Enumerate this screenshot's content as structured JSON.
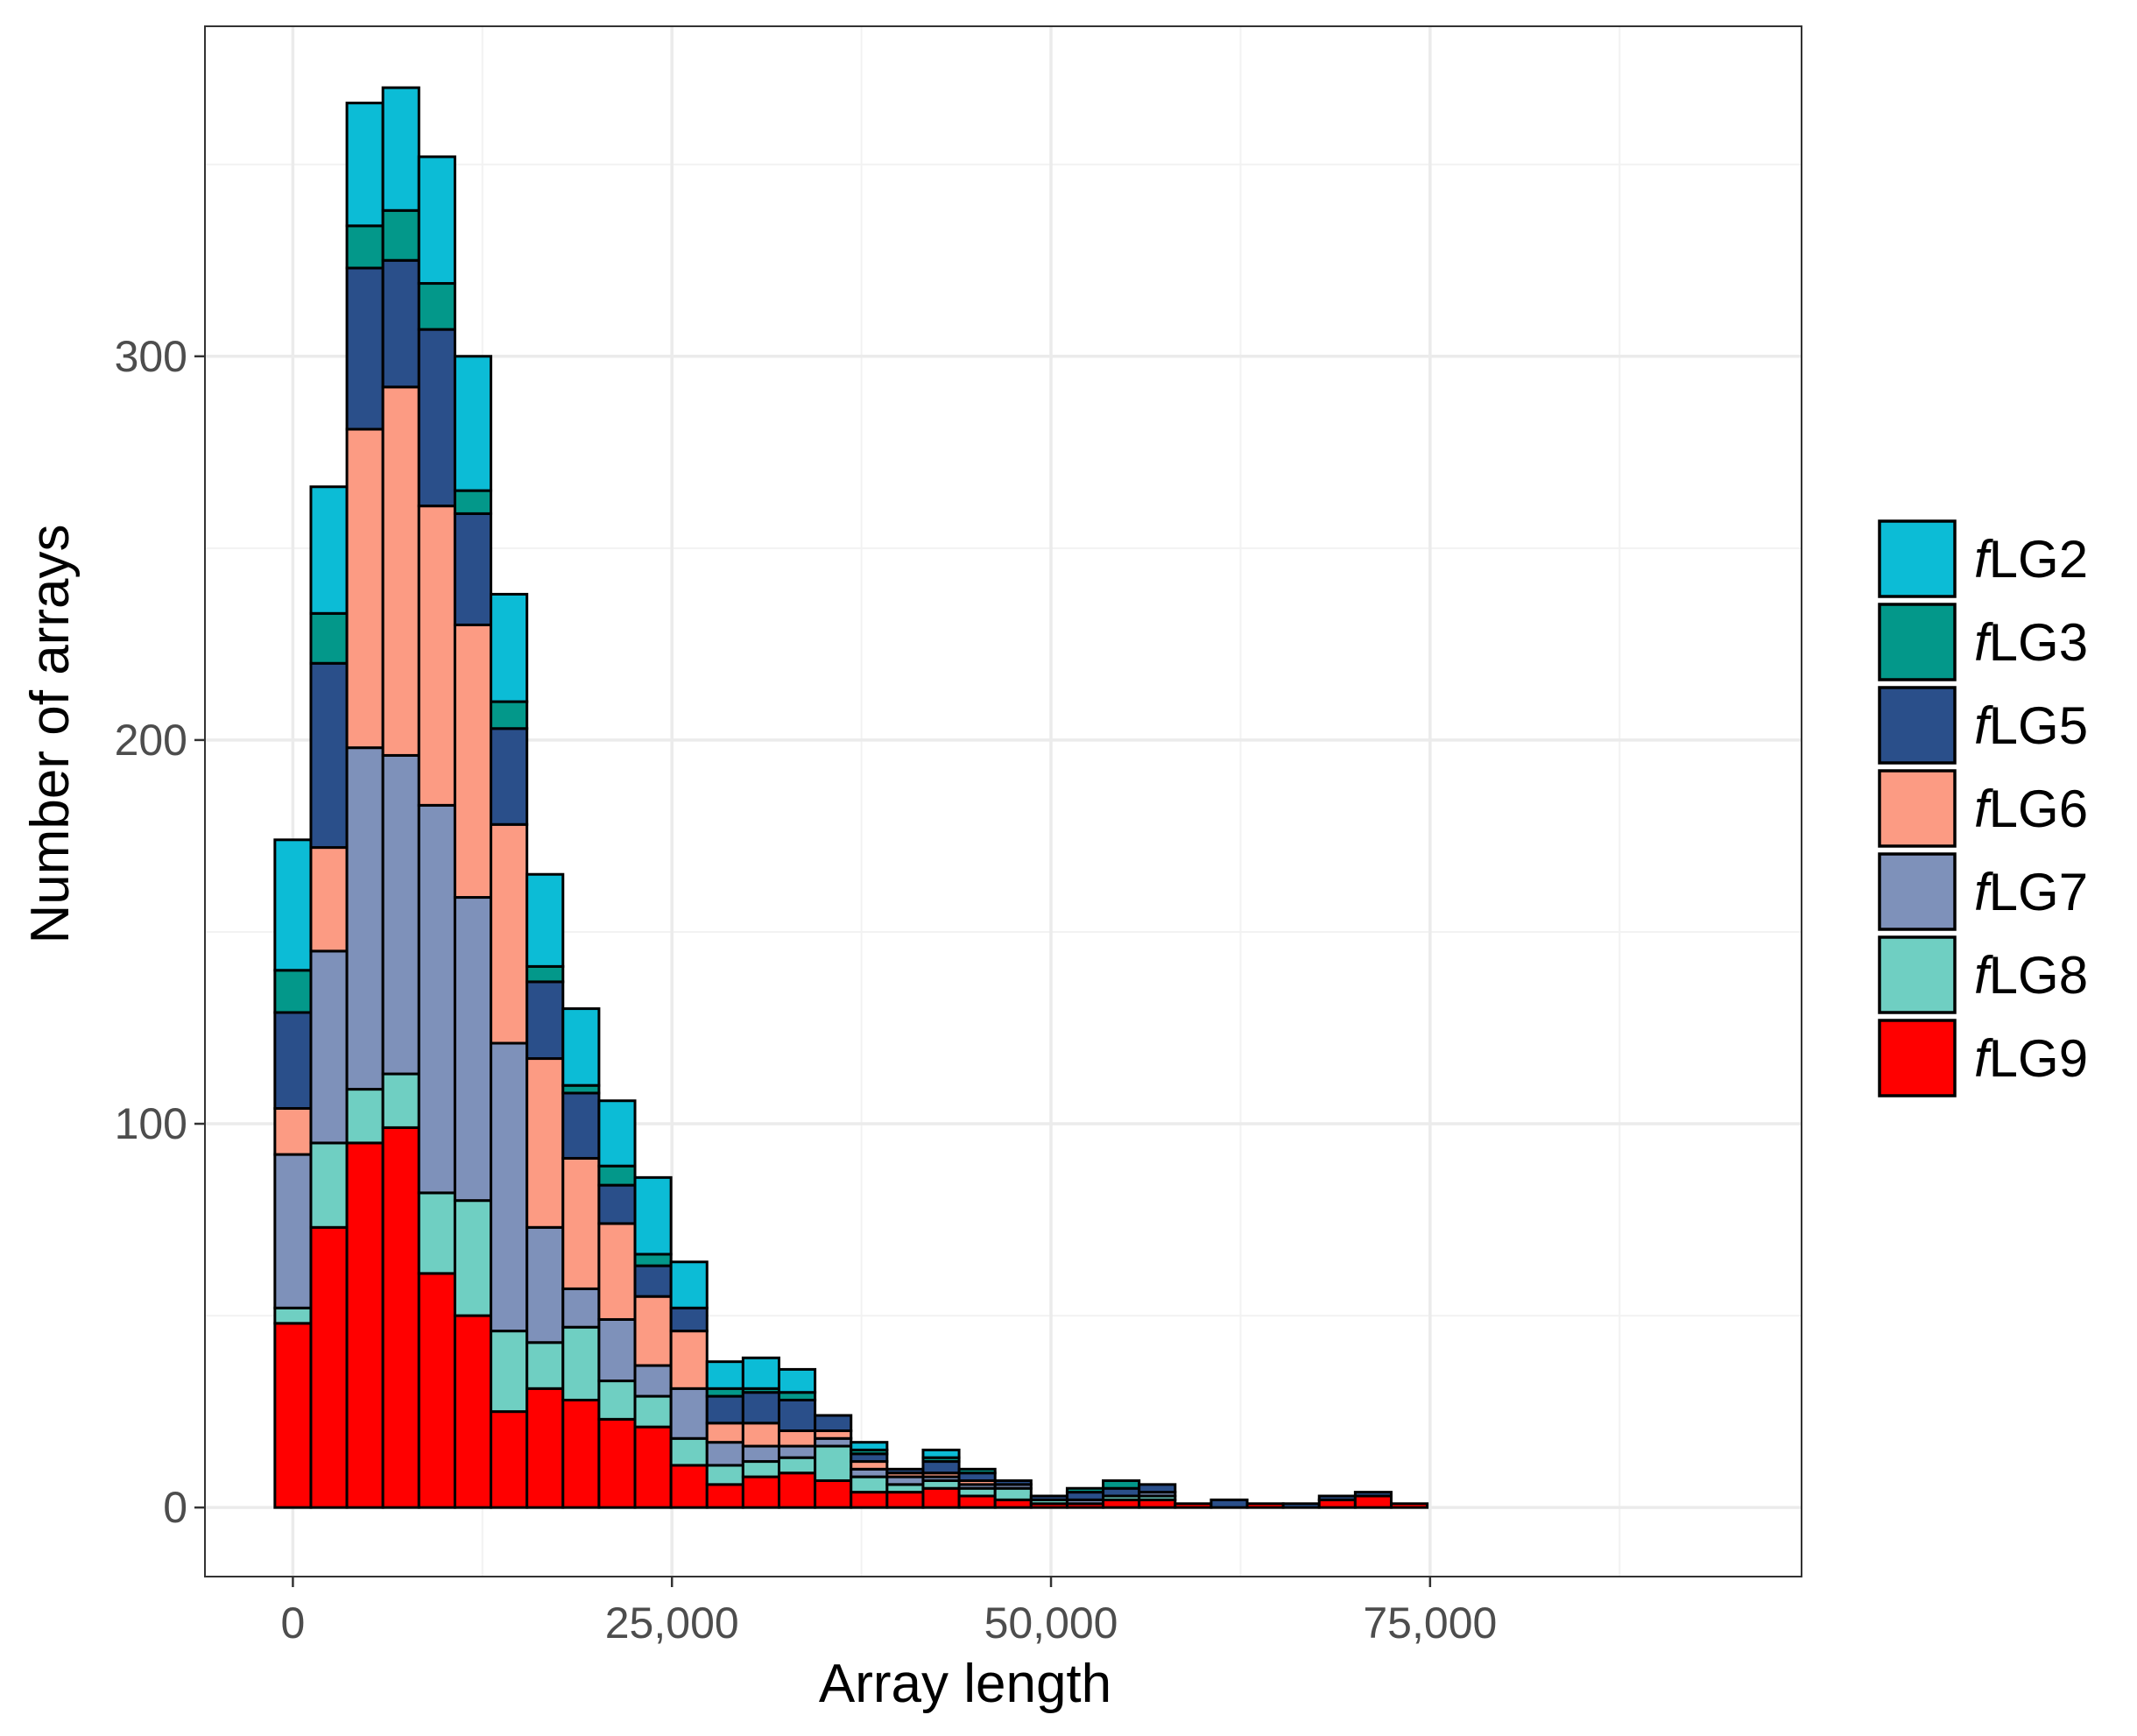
{
  "chart_data": {
    "type": "bar",
    "stacked": true,
    "title": "",
    "xlabel": "Array length",
    "ylabel": "Number of arrays",
    "xlim": [
      -5800,
      99500
    ],
    "ylim": [
      -18,
      386
    ],
    "x_ticks": [
      0,
      25000,
      50000,
      75000
    ],
    "x_tick_labels": [
      "0",
      "25,000",
      "50,000",
      "75,000"
    ],
    "y_ticks": [
      0,
      100,
      200,
      300
    ],
    "y_tick_labels": [
      "0",
      "100",
      "200",
      "300"
    ],
    "grid": true,
    "legend_position": "right",
    "bin_width": 2375,
    "bin_centers": [
      0,
      2375,
      4750,
      7125,
      9500,
      11875,
      14250,
      16625,
      19000,
      21375,
      23750,
      26125,
      28500,
      30875,
      33250,
      35625,
      38000,
      40375,
      42750,
      45125,
      47500,
      49875,
      52250,
      54625,
      57000,
      59375,
      61750,
      64125,
      66500,
      68875,
      71250,
      73625,
      76000,
      78375,
      80750,
      83125,
      85500,
      87875,
      90250,
      92625
    ],
    "series": [
      {
        "name": "fLG9",
        "prefix": "f",
        "label": "LG9",
        "color": "#ff0000",
        "values": [
          48,
          73,
          95,
          99,
          61,
          50,
          25,
          31,
          28,
          23,
          21,
          11,
          6,
          8,
          9,
          7,
          4,
          4,
          5,
          3,
          2,
          1,
          1,
          2,
          2,
          1,
          0,
          1,
          0,
          2,
          3,
          1,
          0,
          0,
          0,
          0,
          0,
          0,
          0,
          0
        ]
      },
      {
        "name": "fLG8",
        "prefix": "f",
        "label": "LG8",
        "color": "#6fcfc2",
        "values": [
          4,
          22,
          14,
          14,
          21,
          30,
          21,
          12,
          19,
          10,
          8,
          7,
          5,
          4,
          4,
          9,
          4,
          2,
          2,
          2,
          3,
          1,
          0,
          1,
          1,
          0,
          0,
          0,
          0,
          0,
          0,
          0,
          0,
          0,
          0,
          0,
          0,
          0,
          0,
          0
        ]
      },
      {
        "name": "fLG7",
        "prefix": "f",
        "label": "LG7",
        "color": "#7e91ba",
        "values": [
          40,
          50,
          89,
          83,
          101,
          79,
          75,
          30,
          10,
          16,
          8,
          13,
          6,
          4,
          3,
          2,
          2,
          2,
          1,
          1,
          1,
          0,
          1,
          0,
          1,
          0,
          0,
          0,
          0,
          0,
          0,
          0,
          0,
          0,
          0,
          0,
          0,
          0,
          0,
          0
        ]
      },
      {
        "name": "fLG6",
        "prefix": "f",
        "label": "LG6",
        "color": "#fc9b83",
        "values": [
          12,
          27,
          83,
          96,
          78,
          71,
          57,
          44,
          34,
          25,
          18,
          15,
          5,
          6,
          4,
          2,
          2,
          1,
          1,
          1,
          0,
          0,
          0,
          0,
          0,
          0,
          0,
          0,
          0,
          0,
          0,
          0,
          0,
          0,
          0,
          0,
          0,
          0,
          0,
          0
        ]
      },
      {
        "name": "fLG5",
        "prefix": "f",
        "label": "LG5",
        "color": "#2a4f8a",
        "values": [
          25,
          48,
          42,
          33,
          46,
          29,
          25,
          20,
          17,
          10,
          8,
          6,
          7,
          8,
          8,
          4,
          2,
          1,
          3,
          2,
          1,
          1,
          2,
          2,
          2,
          0,
          2,
          0,
          1,
          1,
          1,
          0,
          0,
          0,
          0,
          0,
          0,
          0,
          0,
          0
        ]
      },
      {
        "name": "fLG3",
        "prefix": "f",
        "label": "LG3",
        "color": "#03988a",
        "values": [
          11,
          13,
          11,
          13,
          12,
          6,
          7,
          4,
          2,
          5,
          3,
          0,
          2,
          1,
          2,
          0,
          1,
          0,
          1,
          1,
          0,
          0,
          1,
          2,
          0,
          0,
          0,
          0,
          0,
          0,
          0,
          0,
          0,
          0,
          0,
          0,
          0,
          0,
          0,
          0
        ]
      },
      {
        "name": "fLG2",
        "prefix": "f",
        "label": "LG2",
        "color": "#0cbcd6",
        "values": [
          34,
          33,
          32,
          32,
          33,
          35,
          28,
          24,
          20,
          17,
          20,
          12,
          7,
          8,
          6,
          0,
          2,
          0,
          2,
          0,
          0,
          0,
          0,
          0,
          0,
          0,
          0,
          0,
          0,
          0,
          0,
          0,
          0,
          0,
          0,
          0,
          0,
          0,
          0,
          0
        ]
      }
    ],
    "legend_order": [
      "fLG2",
      "fLG3",
      "fLG5",
      "fLG6",
      "fLG7",
      "fLG8",
      "fLG9"
    ]
  }
}
